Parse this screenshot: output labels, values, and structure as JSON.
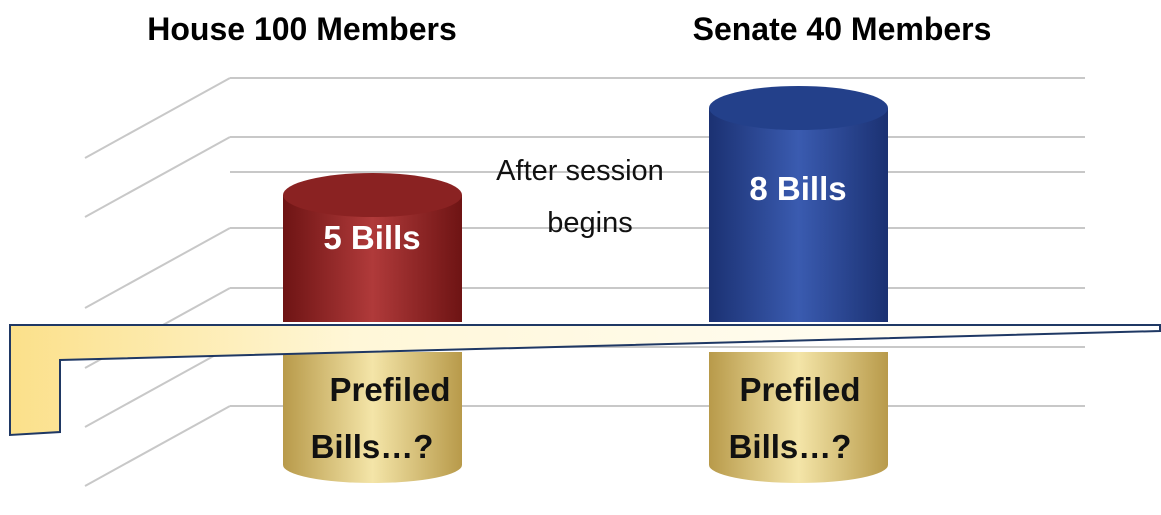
{
  "headers": [
    "House 100 Members",
    "Senate 40 Members"
  ],
  "annotation": [
    "After session",
    "begins"
  ],
  "cylinders": [
    {
      "label": "5 Bills",
      "prefiled": [
        "Prefiled",
        "Bills…?"
      ]
    },
    {
      "label": "8 Bills",
      "prefiled": [
        "Prefiled",
        "Bills…?"
      ]
    }
  ]
}
